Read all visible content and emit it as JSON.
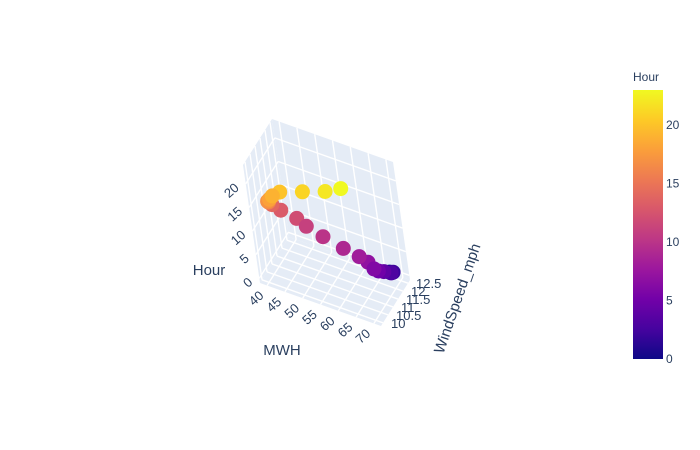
{
  "chart_data": {
    "type": "scatter3d",
    "x_label": "MWH",
    "y_label": "WindSpeed_mph",
    "z_label": "Hour",
    "x_ticks": [
      "40",
      "45",
      "50",
      "55",
      "60",
      "65",
      "70"
    ],
    "y_ticks": [
      "10",
      "10.5",
      "11",
      "11.5",
      "12",
      "12.5"
    ],
    "z_ticks": [
      "0",
      "5",
      "10",
      "15",
      "20"
    ],
    "x_range": [
      38,
      72
    ],
    "y_range": [
      9.8,
      12.7
    ],
    "z_range": [
      -1,
      24
    ],
    "colorbar": {
      "title": "Hour",
      "ticks": [
        "0",
        "5",
        "10",
        "15",
        "20"
      ],
      "range": [
        0,
        23
      ],
      "colorscale": [
        "#0d0887",
        "#46039f",
        "#7201a8",
        "#9c179e",
        "#bd3786",
        "#d8576b",
        "#ed7953",
        "#fb9f3a",
        "#fdca26",
        "#f0f921"
      ]
    },
    "points": [
      {
        "hour": 0,
        "mwh": 67.0,
        "wind": 12.5
      },
      {
        "hour": 1,
        "mwh": 68.5,
        "wind": 12.3
      },
      {
        "hour": 2,
        "mwh": 69.5,
        "wind": 12.1
      },
      {
        "hour": 3,
        "mwh": 70.0,
        "wind": 11.8
      },
      {
        "hour": 4,
        "mwh": 69.0,
        "wind": 11.5
      },
      {
        "hour": 5,
        "mwh": 68.5,
        "wind": 11.2
      },
      {
        "hour": 6,
        "mwh": 68.0,
        "wind": 11.0
      },
      {
        "hour": 7,
        "mwh": 66.5,
        "wind": 11.0
      },
      {
        "hour": 8,
        "mwh": 64.5,
        "wind": 10.9
      },
      {
        "hour": 9,
        "mwh": 60.5,
        "wind": 10.8
      },
      {
        "hour": 10,
        "mwh": 55.0,
        "wind": 10.8
      },
      {
        "hour": 11,
        "mwh": 50.5,
        "wind": 10.8
      },
      {
        "hour": 12,
        "mwh": 48.0,
        "wind": 10.8
      },
      {
        "hour": 13,
        "mwh": 44.0,
        "wind": 10.7
      },
      {
        "hour": 14,
        "mwh": 42.0,
        "wind": 10.6
      },
      {
        "hour": 15,
        "mwh": 41.5,
        "wind": 10.6
      },
      {
        "hour": 16,
        "mwh": 42.5,
        "wind": 10.2
      },
      {
        "hour": 17,
        "mwh": 43.0,
        "wind": 10.0
      },
      {
        "hour": 18,
        "mwh": 44.0,
        "wind": 9.9
      },
      {
        "hour": 19,
        "mwh": 45.0,
        "wind": 9.9
      },
      {
        "hour": 20,
        "mwh": 47.0,
        "wind": 10.0
      },
      {
        "hour": 21,
        "mwh": 53.0,
        "wind": 10.2
      },
      {
        "hour": 22,
        "mwh": 59.0,
        "wind": 10.4
      },
      {
        "hour": 23,
        "mwh": 63.0,
        "wind": 10.6
      }
    ]
  }
}
